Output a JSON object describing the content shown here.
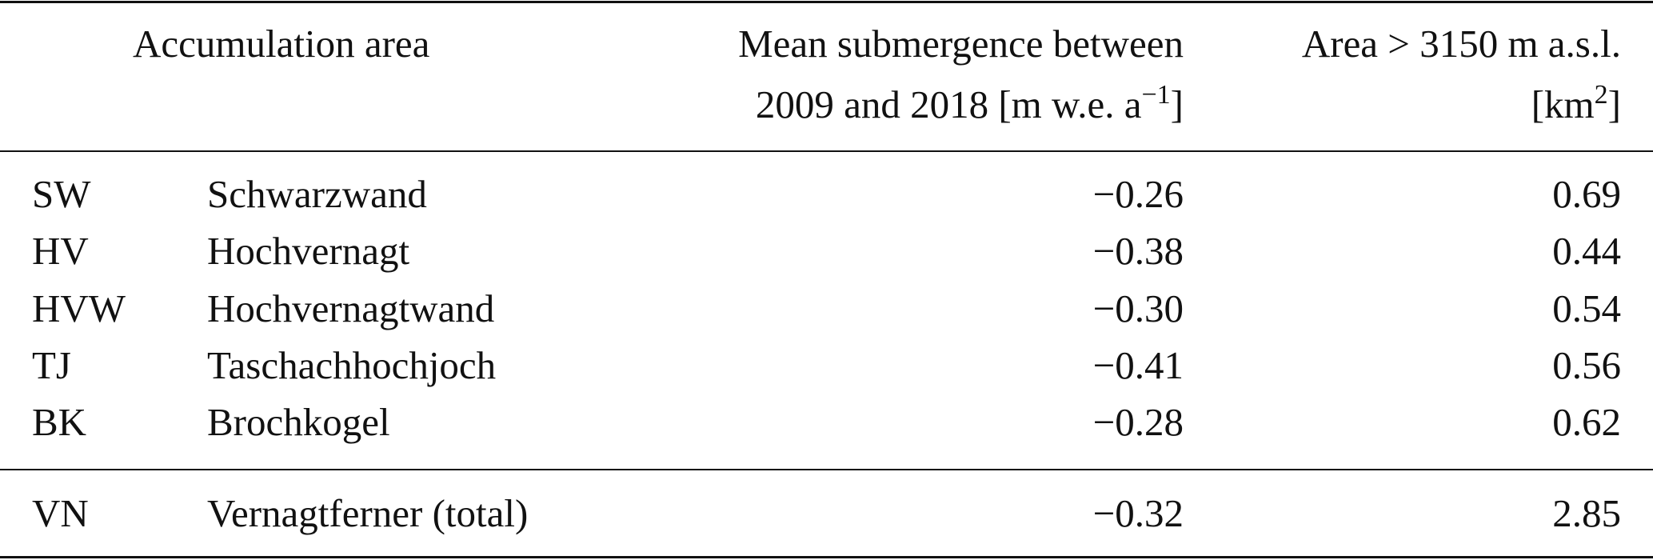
{
  "table": {
    "header": {
      "accumulation_area": "Accumulation area",
      "mean_line1": "Mean submergence between",
      "mean_line2": "2009 and 2018 [m w.e. a",
      "mean_sup": "−1",
      "mean_close": "]",
      "area_line1": "Area > 3150 m a.s.l.",
      "area_line2": "[km",
      "area_sup": "2",
      "area_close": "]"
    },
    "rows": [
      [
        "SW",
        "Schwarzwand",
        "−0.26",
        "0.69"
      ],
      [
        "HV",
        "Hochvernagt",
        "−0.38",
        "0.44"
      ],
      [
        "HVW",
        "Hochvernagtwand",
        "−0.30",
        "0.54"
      ],
      [
        "TJ",
        "Taschachhochjoch",
        "−0.41",
        "0.56"
      ],
      [
        "BK",
        "Brochkogel",
        "−0.28",
        "0.62"
      ]
    ],
    "total": [
      "VN",
      "Vernagtferner (total)",
      "−0.32",
      "2.85"
    ]
  }
}
